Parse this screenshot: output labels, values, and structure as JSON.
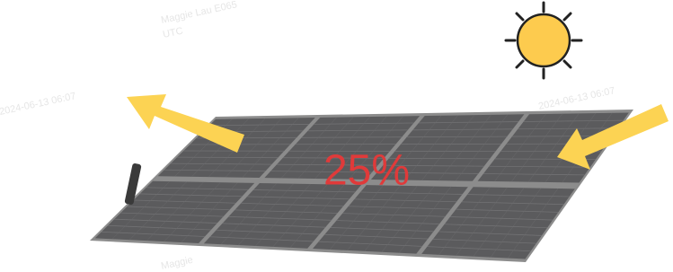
{
  "label": "25%",
  "watermarks": [
    "Maggie Lau E065",
    "UTC",
    "2024-06-13 06:07",
    "2024-06-13 06:07",
    "Maggie"
  ]
}
